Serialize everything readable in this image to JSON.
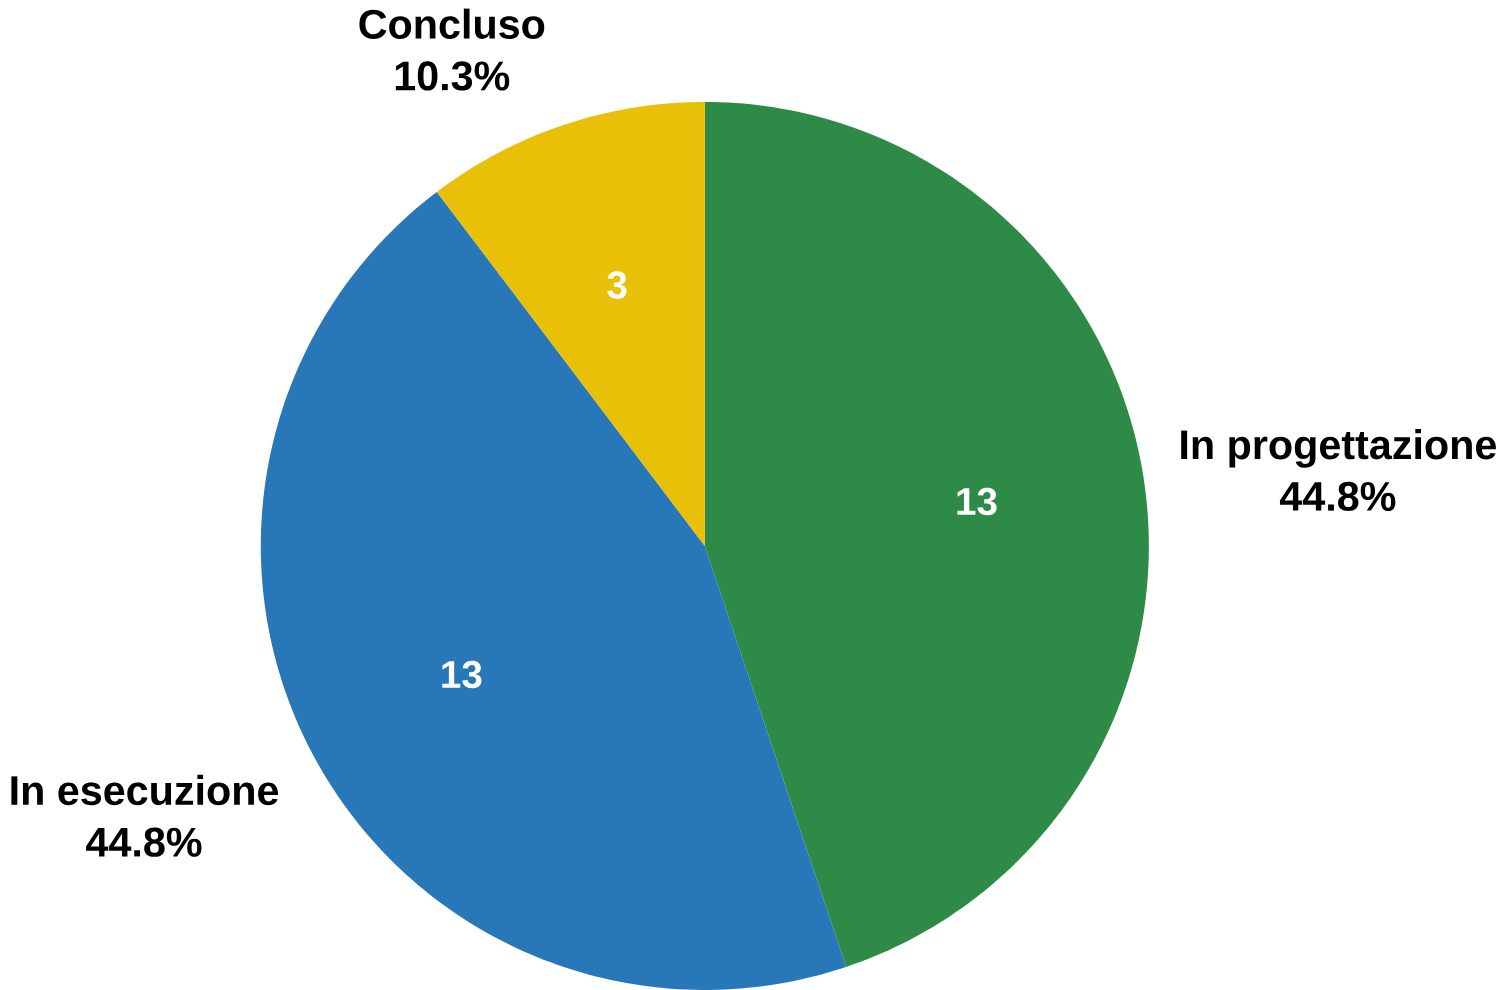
{
  "chart_data": {
    "type": "pie",
    "categories": [
      "In progettazione",
      "In esecuzione",
      "Concluso"
    ],
    "values": [
      44.8,
      44.8,
      10.3
    ],
    "colors": [
      "#2e8b47",
      "#2877b8",
      "#e8c007"
    ],
    "value_labels": [
      "44.8%",
      "44.8%",
      "10.3%"
    ],
    "annotations": [
      {
        "text": "13",
        "x": "In progettazione"
      },
      {
        "text": "13",
        "x": "In esecuzione"
      },
      {
        "text": "3",
        "x": "Concluso"
      }
    ]
  }
}
